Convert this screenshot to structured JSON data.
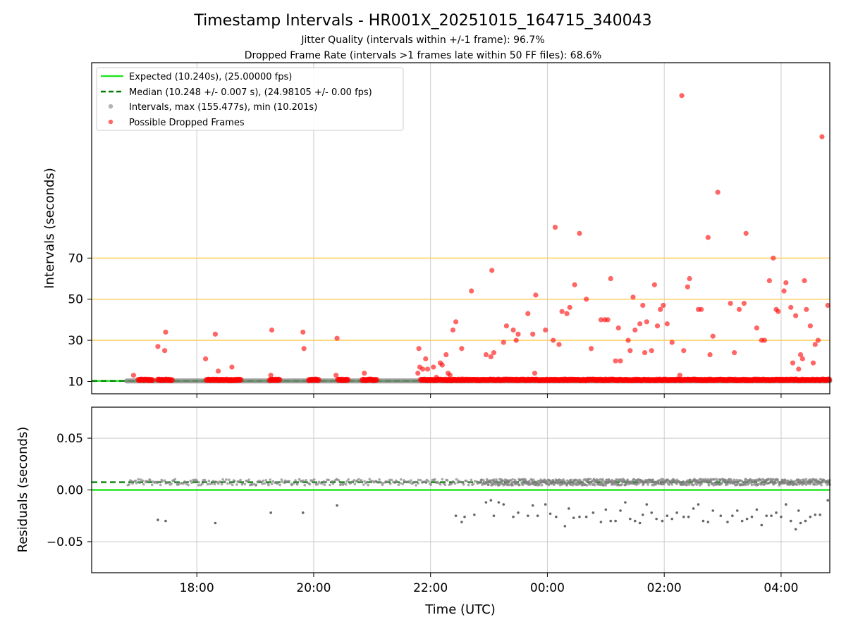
{
  "title": "Timestamp Intervals - HR001X_20251015_164715_340043",
  "subtitle1": "Jitter Quality (intervals within +/-1 frame): 96.7%",
  "subtitle2": "Dropped Frame Rate (intervals >1 frames late within 50 FF files): 68.6%",
  "colors": {
    "expected": "#22e622",
    "median": "#007a00",
    "intervals": "#808080",
    "dropped": "#ff0000",
    "threshold": "#ffd060",
    "grid": "#cccccc"
  },
  "chart_data": [
    {
      "type": "scatter",
      "name": "intervals-panel",
      "ylabel": "Intervals (seconds)",
      "xlim": [
        "16:12",
        "04:50"
      ],
      "ylim": [
        4,
        165
      ],
      "yticks": [
        10,
        30,
        50,
        70
      ],
      "threshold_lines": [
        30,
        50,
        70
      ],
      "legend_position": "upper-left",
      "legend": [
        {
          "key": "expected",
          "label": "Expected (10.240s), (25.00000 fps)"
        },
        {
          "key": "median",
          "label": "Median (10.248 +/- 0.007 s), (24.98105 +/- 0.00 fps)"
        },
        {
          "key": "intervals",
          "label": "Intervals, max (155.477s), min (10.201s)"
        },
        {
          "key": "dropped",
          "label": "Possible Dropped Frames"
        }
      ],
      "expected_interval": 10.24,
      "median_interval": 10.248,
      "normal_interval_span": [
        "16:48",
        "04:50"
      ],
      "dropped_frames_near_baseline": [
        {
          "start": "17:00",
          "end": "17:15"
        },
        {
          "start": "17:20",
          "end": "17:35"
        },
        {
          "start": "18:10",
          "end": "18:35"
        },
        {
          "start": "18:35",
          "end": "18:45"
        },
        {
          "start": "19:15",
          "end": "19:25"
        },
        {
          "start": "19:55",
          "end": "20:05"
        },
        {
          "start": "20:25",
          "end": "20:35"
        },
        {
          "start": "20:50",
          "end": "21:05"
        },
        {
          "start": "21:50",
          "end": "04:50"
        }
      ],
      "dropped_frames": [
        [
          "16:55",
          13
        ],
        [
          "17:20",
          27
        ],
        [
          "17:27",
          25
        ],
        [
          "17:28",
          34
        ],
        [
          "18:09",
          21
        ],
        [
          "18:19",
          33
        ],
        [
          "18:22",
          15
        ],
        [
          "18:20",
          11
        ],
        [
          "18:36",
          17
        ],
        [
          "19:17",
          35
        ],
        [
          "19:16",
          13
        ],
        [
          "19:49",
          34
        ],
        [
          "19:50",
          26
        ],
        [
          "20:24",
          31
        ],
        [
          "20:23",
          13
        ],
        [
          "20:52",
          14
        ],
        [
          "21:47",
          14
        ],
        [
          "21:48",
          26
        ],
        [
          "21:49",
          17
        ],
        [
          "21:52",
          16
        ],
        [
          "21:55",
          21
        ],
        [
          "21:57",
          16
        ],
        [
          "22:03",
          17
        ],
        [
          "22:06",
          12
        ],
        [
          "22:10",
          19
        ],
        [
          "22:12",
          18
        ],
        [
          "22:16",
          23
        ],
        [
          "22:18",
          14
        ],
        [
          "22:20",
          13
        ],
        [
          "22:23",
          35
        ],
        [
          "22:26",
          39
        ],
        [
          "22:32",
          26
        ],
        [
          "22:42",
          54
        ],
        [
          "22:57",
          23
        ],
        [
          "23:02",
          22
        ],
        [
          "23:03",
          64
        ],
        [
          "23:05",
          24
        ],
        [
          "23:15",
          29
        ],
        [
          "23:18",
          37
        ],
        [
          "23:25",
          35
        ],
        [
          "23:28",
          30
        ],
        [
          "23:30",
          33
        ],
        [
          "23:40",
          43
        ],
        [
          "23:45",
          33
        ],
        [
          "23:48",
          52
        ],
        [
          "23:47",
          14
        ],
        [
          "23:58",
          35
        ],
        [
          "00:06",
          30
        ],
        [
          "00:08",
          85
        ],
        [
          "00:12",
          28
        ],
        [
          "00:15",
          44
        ],
        [
          "00:20",
          43
        ],
        [
          "00:23",
          46
        ],
        [
          "00:28",
          57
        ],
        [
          "00:33",
          82
        ],
        [
          "00:40",
          50
        ],
        [
          "00:40",
          11
        ],
        [
          "00:45",
          26
        ],
        [
          "00:55",
          40
        ],
        [
          "00:59",
          40
        ],
        [
          "01:02",
          40
        ],
        [
          "01:05",
          60
        ],
        [
          "01:10",
          20
        ],
        [
          "01:13",
          36
        ],
        [
          "01:15",
          20
        ],
        [
          "01:23",
          30
        ],
        [
          "01:25",
          25
        ],
        [
          "01:28",
          51
        ],
        [
          "01:30",
          35
        ],
        [
          "01:35",
          38
        ],
        [
          "01:38",
          47
        ],
        [
          "01:40",
          24
        ],
        [
          "01:42",
          39
        ],
        [
          "01:47",
          25
        ],
        [
          "01:50",
          57
        ],
        [
          "01:53",
          37
        ],
        [
          "01:56",
          45
        ],
        [
          "01:59",
          47
        ],
        [
          "02:03",
          38
        ],
        [
          "02:08",
          29
        ],
        [
          "02:16",
          13
        ],
        [
          "02:18",
          149
        ],
        [
          "02:20",
          25
        ],
        [
          "02:24",
          56
        ],
        [
          "02:26",
          60
        ],
        [
          "02:25",
          11
        ],
        [
          "02:35",
          45
        ],
        [
          "02:38",
          45
        ],
        [
          "02:45",
          80
        ],
        [
          "02:47",
          23
        ],
        [
          "02:50",
          32
        ],
        [
          "02:55",
          102
        ],
        [
          "03:08",
          48
        ],
        [
          "03:12",
          24
        ],
        [
          "03:17",
          45
        ],
        [
          "03:22",
          48
        ],
        [
          "03:24",
          82
        ],
        [
          "03:35",
          36
        ],
        [
          "03:40",
          30
        ],
        [
          "03:43",
          30
        ],
        [
          "03:48",
          59
        ],
        [
          "03:52",
          70
        ],
        [
          "03:55",
          45
        ],
        [
          "03:57",
          44
        ],
        [
          "04:00",
          11
        ],
        [
          "04:03",
          54
        ],
        [
          "04:05",
          58
        ],
        [
          "04:10",
          46
        ],
        [
          "04:12",
          19
        ],
        [
          "04:15",
          42
        ],
        [
          "04:18",
          16
        ],
        [
          "04:20",
          23
        ],
        [
          "04:22",
          21
        ],
        [
          "04:24",
          59
        ],
        [
          "04:26",
          45
        ],
        [
          "04:30",
          37
        ],
        [
          "04:33",
          19
        ],
        [
          "04:35",
          28
        ],
        [
          "04:38",
          30
        ],
        [
          "04:42",
          129
        ],
        [
          "04:48",
          47
        ]
      ]
    },
    {
      "type": "scatter",
      "name": "residuals-panel",
      "ylabel": "Residuals (seconds)",
      "xlabel": "Time (UTC)",
      "xlim": [
        "16:12",
        "04:50"
      ],
      "ylim": [
        -0.08,
        0.08
      ],
      "yticks": [
        {
          "value": 0.05,
          "label": "0.05"
        },
        {
          "value": 0.0,
          "label": "0.00"
        },
        {
          "value": -0.05,
          "label": "−0.05"
        }
      ],
      "xticks": [
        {
          "time": "18:00",
          "label": "18:00"
        },
        {
          "time": "20:00",
          "label": "20:00"
        },
        {
          "time": "22:00",
          "label": "22:00"
        },
        {
          "time": "00:00",
          "label": "00:00"
        },
        {
          "time": "02:00",
          "label": "02:00"
        },
        {
          "time": "04:00",
          "label": "04:00"
        }
      ],
      "expected_residual": 0.0,
      "median_residual": 0.0075,
      "residual_band": {
        "center": 0.0075,
        "spread": 0.003
      },
      "residual_outliers": [
        [
          "17:20",
          -0.029
        ],
        [
          "17:28",
          -0.03
        ],
        [
          "18:19",
          -0.032
        ],
        [
          "19:16",
          -0.022
        ],
        [
          "19:49",
          -0.022
        ],
        [
          "20:24",
          -0.015
        ],
        [
          "22:26",
          -0.025
        ],
        [
          "22:32",
          -0.031
        ],
        [
          "22:35",
          -0.026
        ],
        [
          "22:45",
          -0.024
        ],
        [
          "22:57",
          -0.012
        ],
        [
          "23:02",
          -0.01
        ],
        [
          "23:05",
          -0.025
        ],
        [
          "23:10",
          -0.012
        ],
        [
          "23:15",
          -0.014
        ],
        [
          "23:25",
          -0.026
        ],
        [
          "23:30",
          -0.022
        ],
        [
          "23:40",
          -0.025
        ],
        [
          "23:45",
          -0.015
        ],
        [
          "23:50",
          -0.025
        ],
        [
          "23:58",
          -0.014
        ],
        [
          "00:03",
          -0.023
        ],
        [
          "00:09",
          -0.026
        ],
        [
          "00:18",
          -0.035
        ],
        [
          "00:22",
          -0.018
        ],
        [
          "00:27",
          -0.027
        ],
        [
          "00:33",
          -0.026
        ],
        [
          "00:40",
          -0.026
        ],
        [
          "00:47",
          -0.022
        ],
        [
          "00:55",
          -0.031
        ],
        [
          "01:00",
          -0.019
        ],
        [
          "01:05",
          -0.03
        ],
        [
          "01:10",
          -0.03
        ],
        [
          "01:15",
          -0.02
        ],
        [
          "01:20",
          -0.012
        ],
        [
          "01:25",
          -0.028
        ],
        [
          "01:30",
          -0.03
        ],
        [
          "01:35",
          -0.032
        ],
        [
          "01:38",
          -0.024
        ],
        [
          "01:42",
          -0.014
        ],
        [
          "01:47",
          -0.022
        ],
        [
          "01:52",
          -0.028
        ],
        [
          "01:58",
          -0.03
        ],
        [
          "02:03",
          -0.025
        ],
        [
          "02:08",
          -0.028
        ],
        [
          "02:13",
          -0.022
        ],
        [
          "02:20",
          -0.026
        ],
        [
          "02:25",
          -0.026
        ],
        [
          "02:30",
          -0.018
        ],
        [
          "02:35",
          -0.014
        ],
        [
          "02:40",
          -0.03
        ],
        [
          "02:45",
          -0.031
        ],
        [
          "02:50",
          -0.02
        ],
        [
          "02:58",
          -0.025
        ],
        [
          "03:05",
          -0.031
        ],
        [
          "03:10",
          -0.025
        ],
        [
          "03:15",
          -0.02
        ],
        [
          "03:20",
          -0.03
        ],
        [
          "03:25",
          -0.028
        ],
        [
          "03:30",
          -0.026
        ],
        [
          "03:35",
          -0.019
        ],
        [
          "03:40",
          -0.034
        ],
        [
          "03:45",
          -0.025
        ],
        [
          "03:50",
          -0.025
        ],
        [
          "03:55",
          -0.022
        ],
        [
          "04:00",
          -0.026
        ],
        [
          "04:05",
          -0.014
        ],
        [
          "04:10",
          -0.03
        ],
        [
          "04:15",
          -0.038
        ],
        [
          "04:18",
          -0.02
        ],
        [
          "04:20",
          -0.032
        ],
        [
          "04:25",
          -0.03
        ],
        [
          "04:30",
          -0.026
        ],
        [
          "04:35",
          -0.024
        ],
        [
          "04:40",
          -0.024
        ],
        [
          "04:48",
          -0.01
        ]
      ]
    }
  ]
}
